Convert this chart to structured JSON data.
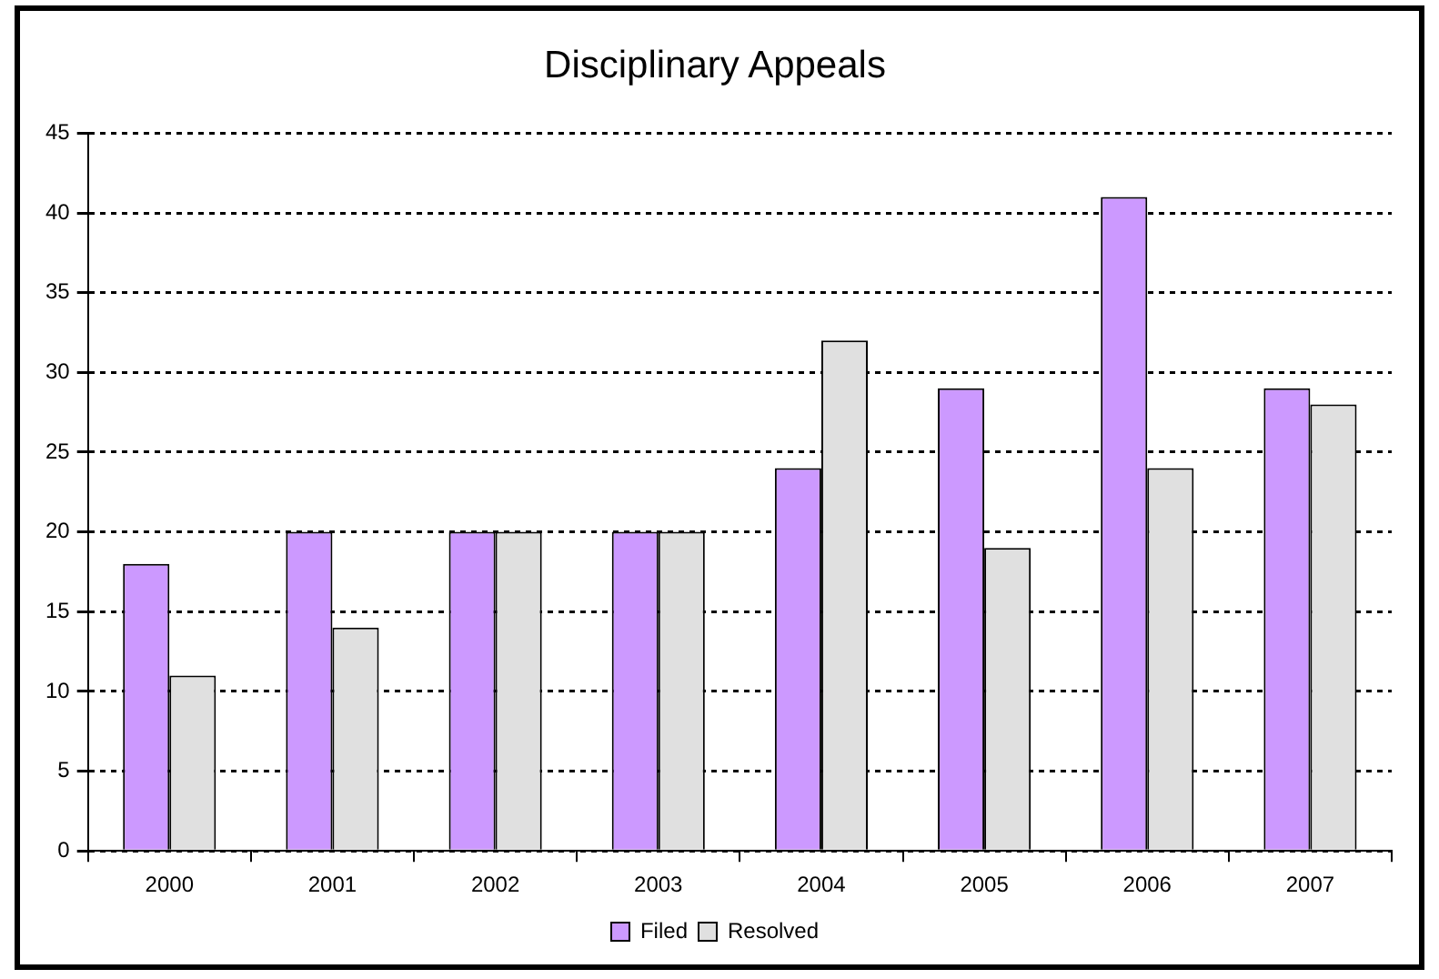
{
  "chart_data": {
    "type": "bar",
    "title": "Disciplinary Appeals",
    "categories": [
      "2000",
      "2001",
      "2002",
      "2003",
      "2004",
      "2005",
      "2006",
      "2007"
    ],
    "series": [
      {
        "name": "Filed",
        "color": "#cc99ff",
        "values": [
          18,
          20,
          20,
          20,
          24,
          29,
          41,
          29
        ]
      },
      {
        "name": "Resolved",
        "color": "#e0e0e0",
        "values": [
          11,
          14,
          20,
          20,
          32,
          19,
          24,
          28
        ]
      }
    ],
    "ylim": [
      0,
      45
    ],
    "yticks": [
      0,
      5,
      10,
      15,
      20,
      25,
      30,
      35,
      40,
      45
    ],
    "grid": "y",
    "legend": "bottom"
  }
}
